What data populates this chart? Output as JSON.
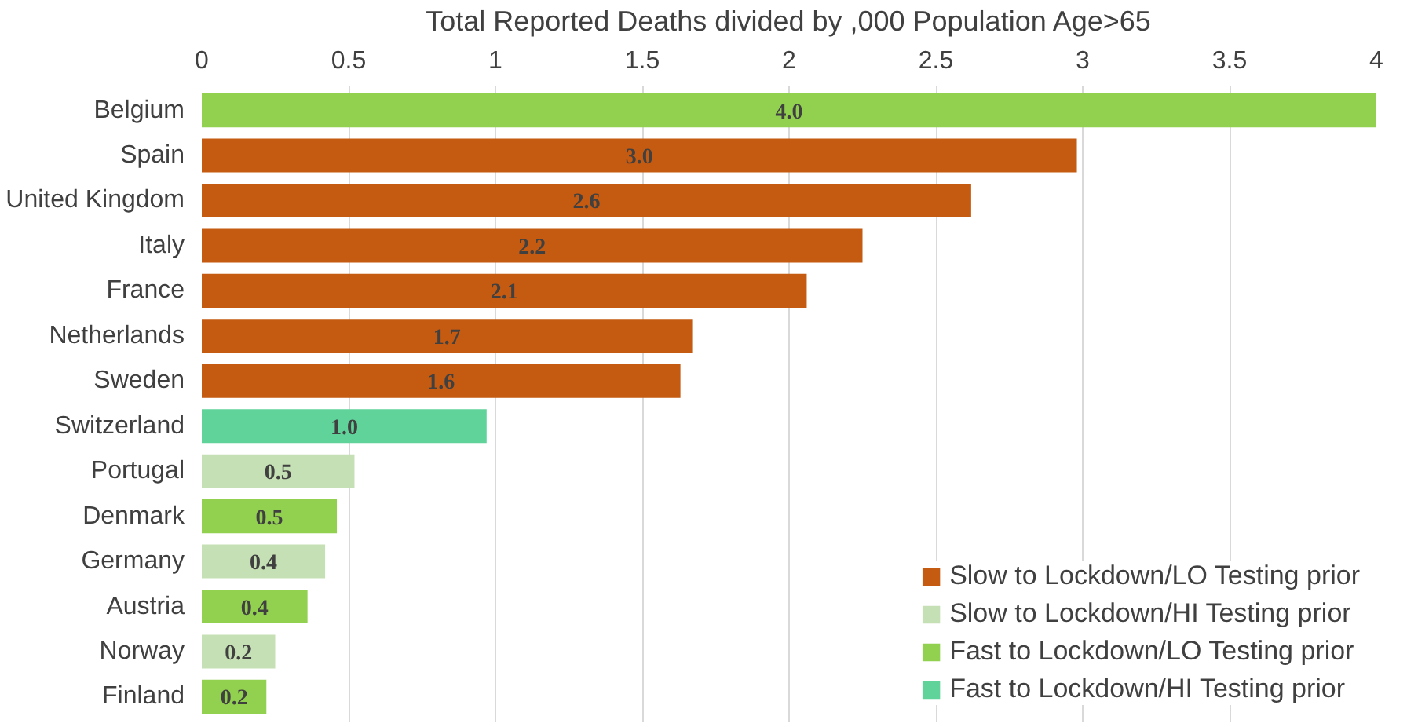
{
  "chart_data": {
    "type": "bar",
    "orientation": "horizontal",
    "xlabel": "Total Reported Deaths divided by ,000 Population Age>65",
    "categories": [
      "Belgium",
      "Spain",
      "United Kingdom",
      "Italy",
      "France",
      "Netherlands",
      "Sweden",
      "Switzerland",
      "Portugal",
      "Denmark",
      "Germany",
      "Austria",
      "Norway",
      "Finland"
    ],
    "xlim": [
      0,
      4
    ],
    "xticks": [
      0,
      0.5,
      1,
      1.5,
      2,
      2.5,
      3,
      3.5,
      4
    ],
    "grid": "x",
    "legend": "bottom right",
    "series": [
      {
        "name": "Slow to Lockdown/LO Testing prior",
        "color": "#c55a11",
        "values": [
          null,
          2.98,
          2.62,
          2.25,
          2.06,
          1.67,
          1.63,
          null,
          null,
          null,
          null,
          null,
          null,
          null
        ],
        "value_labels": [
          null,
          "3.0",
          "2.6",
          "2.2",
          "2.1",
          "1.7",
          "1.6",
          null,
          null,
          null,
          null,
          null,
          null,
          null
        ]
      },
      {
        "name": "Slow to Lockdown/HI Testing prior",
        "color": "#c5e0b4",
        "values": [
          null,
          null,
          null,
          null,
          null,
          null,
          null,
          null,
          0.52,
          null,
          0.42,
          null,
          0.25,
          null
        ],
        "value_labels": [
          null,
          null,
          null,
          null,
          null,
          null,
          null,
          null,
          "0.5",
          null,
          "0.4",
          null,
          "0.2",
          null
        ]
      },
      {
        "name": "Fast to Lockdown/LO Testing prior",
        "color": "#92d050",
        "values": [
          4.0,
          null,
          null,
          null,
          null,
          null,
          null,
          null,
          null,
          0.46,
          null,
          0.36,
          null,
          0.22
        ],
        "value_labels": [
          "4.0",
          null,
          null,
          null,
          null,
          null,
          null,
          null,
          null,
          "0.5",
          null,
          "0.4",
          null,
          "0.2"
        ]
      },
      {
        "name": "Fast to Lockdown/HI Testing prior",
        "color": "#5fd39a",
        "values": [
          null,
          null,
          null,
          null,
          null,
          null,
          null,
          0.97,
          null,
          null,
          null,
          null,
          null,
          null
        ],
        "value_labels": [
          null,
          null,
          null,
          null,
          null,
          null,
          null,
          "1.0",
          null,
          null,
          null,
          null,
          null,
          null
        ]
      }
    ]
  }
}
